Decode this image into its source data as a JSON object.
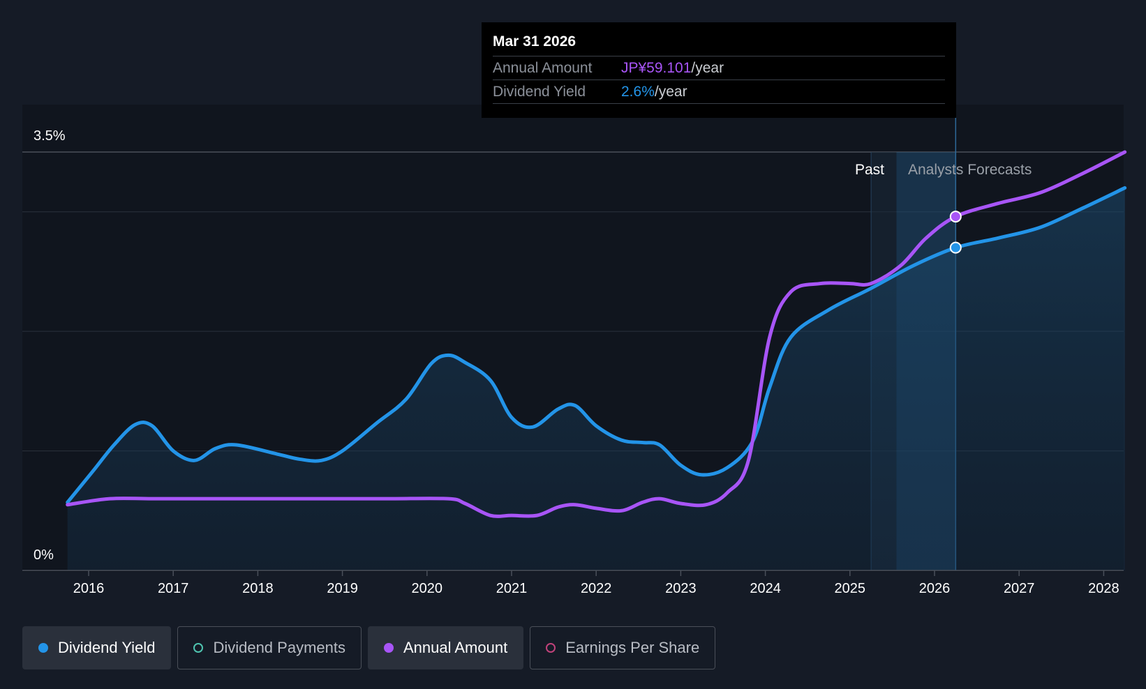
{
  "tooltip": {
    "date": "Mar 31 2026",
    "rows": [
      {
        "label": "Annual Amount",
        "value": "JP¥59.101",
        "unit": "/year",
        "color": "#a855f7"
      },
      {
        "label": "Dividend Yield",
        "value": "2.6%",
        "unit": "/year",
        "color": "#2394e8"
      }
    ]
  },
  "region_labels": {
    "past": "Past",
    "forecast": "Analysts Forecasts"
  },
  "legend": [
    {
      "label": "Dividend Yield",
      "color": "#2394e8",
      "active": true,
      "filled": true
    },
    {
      "label": "Dividend Payments",
      "color": "#4fc4b0",
      "active": false,
      "filled": false
    },
    {
      "label": "Annual Amount",
      "color": "#a855f7",
      "active": true,
      "filled": true
    },
    {
      "label": "Earnings Per Share",
      "color": "#c0427a",
      "active": false,
      "filled": false
    }
  ],
  "chart_data": {
    "type": "line",
    "ylim": [
      0,
      3.5
    ],
    "ytick_labels": [
      "0%",
      "3.5%"
    ],
    "xlim": [
      2015.75,
      2028.25
    ],
    "x_ticks": [
      2016,
      2017,
      2018,
      2019,
      2020,
      2021,
      2022,
      2023,
      2024,
      2025,
      2026,
      2027,
      2028
    ],
    "grid": true,
    "past_end": 2025.25,
    "forecast_start": 2025.55,
    "highlight_x": 2026.25,
    "series": [
      {
        "name": "Dividend Yield",
        "color": "#2394e8",
        "fill": true,
        "points": [
          [
            2015.75,
            0.57
          ],
          [
            2016.05,
            0.83
          ],
          [
            2016.3,
            1.05
          ],
          [
            2016.55,
            1.22
          ],
          [
            2016.75,
            1.21
          ],
          [
            2017.0,
            1.0
          ],
          [
            2017.25,
            0.92
          ],
          [
            2017.5,
            1.02
          ],
          [
            2017.75,
            1.05
          ],
          [
            2018.25,
            0.97
          ],
          [
            2018.5,
            0.93
          ],
          [
            2018.75,
            0.92
          ],
          [
            2019.0,
            1.0
          ],
          [
            2019.4,
            1.23
          ],
          [
            2019.75,
            1.43
          ],
          [
            2020.05,
            1.73
          ],
          [
            2020.25,
            1.8
          ],
          [
            2020.45,
            1.74
          ],
          [
            2020.75,
            1.59
          ],
          [
            2021.0,
            1.28
          ],
          [
            2021.25,
            1.2
          ],
          [
            2021.55,
            1.35
          ],
          [
            2021.75,
            1.38
          ],
          [
            2022.0,
            1.21
          ],
          [
            2022.3,
            1.09
          ],
          [
            2022.55,
            1.07
          ],
          [
            2022.75,
            1.05
          ],
          [
            2023.0,
            0.88
          ],
          [
            2023.25,
            0.8
          ],
          [
            2023.55,
            0.86
          ],
          [
            2023.85,
            1.08
          ],
          [
            2024.05,
            1.53
          ],
          [
            2024.3,
            1.95
          ],
          [
            2024.75,
            2.18
          ],
          [
            2025.25,
            2.36
          ],
          [
            2025.75,
            2.55
          ],
          [
            2026.25,
            2.7
          ],
          [
            2026.75,
            2.78
          ],
          [
            2027.25,
            2.87
          ],
          [
            2027.75,
            3.03
          ],
          [
            2028.25,
            3.2
          ]
        ]
      },
      {
        "name": "Annual Amount",
        "color": "#a855f7",
        "fill": false,
        "points": [
          [
            2015.75,
            0.55
          ],
          [
            2016.25,
            0.6
          ],
          [
            2016.75,
            0.6
          ],
          [
            2017.5,
            0.6
          ],
          [
            2018.5,
            0.6
          ],
          [
            2019.5,
            0.6
          ],
          [
            2020.25,
            0.6
          ],
          [
            2020.45,
            0.56
          ],
          [
            2020.75,
            0.46
          ],
          [
            2021.0,
            0.46
          ],
          [
            2021.3,
            0.46
          ],
          [
            2021.55,
            0.53
          ],
          [
            2021.75,
            0.55
          ],
          [
            2022.0,
            0.52
          ],
          [
            2022.3,
            0.5
          ],
          [
            2022.55,
            0.57
          ],
          [
            2022.75,
            0.6
          ],
          [
            2023.0,
            0.56
          ],
          [
            2023.3,
            0.55
          ],
          [
            2023.55,
            0.65
          ],
          [
            2023.8,
            0.92
          ],
          [
            2024.05,
            1.95
          ],
          [
            2024.3,
            2.33
          ],
          [
            2024.65,
            2.4
          ],
          [
            2025.0,
            2.4
          ],
          [
            2025.25,
            2.4
          ],
          [
            2025.6,
            2.55
          ],
          [
            2025.9,
            2.78
          ],
          [
            2026.25,
            2.96
          ],
          [
            2026.75,
            3.07
          ],
          [
            2027.25,
            3.16
          ],
          [
            2027.75,
            3.32
          ],
          [
            2028.25,
            3.5
          ]
        ]
      }
    ]
  }
}
